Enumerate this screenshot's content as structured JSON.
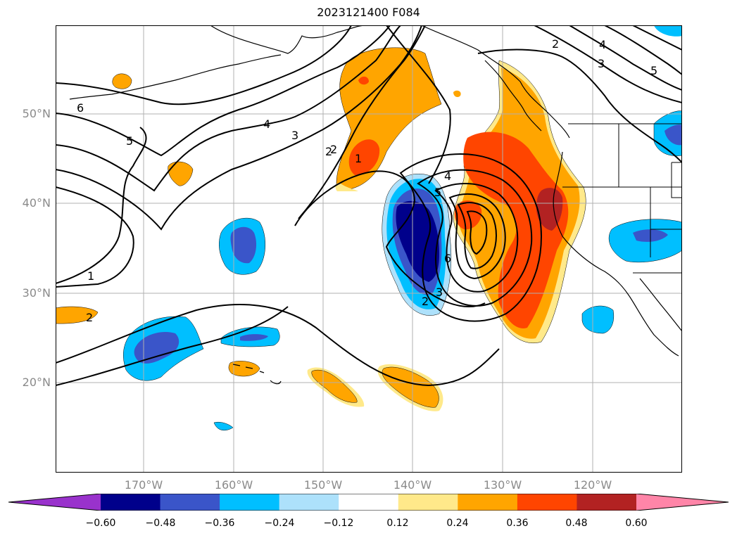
{
  "title": "2023121400 F084",
  "lat_labels": [
    "50°N",
    "40°N",
    "30°N",
    "20°N"
  ],
  "lon_labels": [
    "170°W",
    "160°W",
    "150°W",
    "140°W",
    "130°W",
    "120°W"
  ],
  "colorbar": {
    "ticks": [
      "−0.60",
      "−0.48",
      "−0.36",
      "−0.24",
      "−0.12",
      "0.12",
      "0.24",
      "0.36",
      "0.48",
      "0.60"
    ],
    "colors": [
      "#9932cc",
      "#00008b",
      "#3a55c9",
      "#00bfff",
      "#ade1fb",
      "#ffffff",
      "#ffe98a",
      "#ffa500",
      "#ff4500",
      "#b22222",
      "#ff85a8"
    ],
    "extend": "both"
  },
  "contour_labels": [
    "6",
    "5",
    "4",
    "3",
    "2",
    "1",
    "1",
    "2",
    "2",
    "3",
    "4",
    "5",
    "6",
    "2",
    "4",
    "3",
    "5",
    "2"
  ],
  "shading_colors": {
    "very_light_blue": "#ade1fb",
    "light_blue": "#00bfff",
    "mid_blue": "#3a55c9",
    "navy": "#00008b",
    "light_orange": "#ffe98a",
    "orange": "#ffa500",
    "red_orange": "#ff4500",
    "dark_red": "#b22222"
  }
}
